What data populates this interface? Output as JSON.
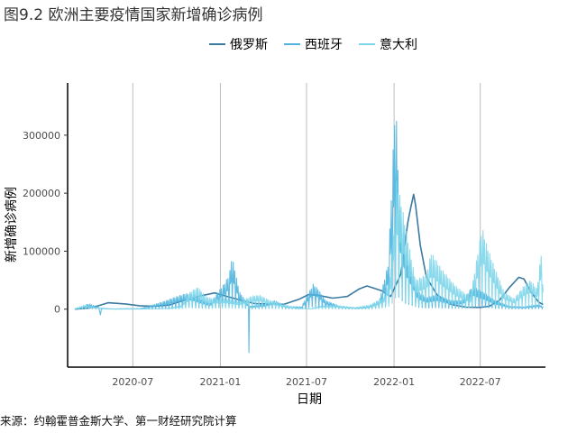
{
  "figure": {
    "title": "图9.2 欧洲主要疫情国家新增确诊病例",
    "source": "来源：约翰霍普金斯大学、第一财经研究院计算"
  },
  "chart_data": {
    "type": "line",
    "title": "",
    "xlabel": "日期",
    "ylabel": "新增确诊病例",
    "x_range": [
      "2020-02-15",
      "2022-11-15"
    ],
    "ylim": [
      -100000,
      390000
    ],
    "x_ticks": [
      "2020-07",
      "2021-01",
      "2021-07",
      "2022-01",
      "2022-07"
    ],
    "y_ticks": [
      0,
      100000,
      200000,
      300000
    ],
    "y_tick_labels": [
      "0",
      "100000",
      "200000",
      "300000"
    ],
    "grid": "vertical only",
    "legend_position": "top",
    "series": [
      {
        "name": "俄罗斯",
        "color": "#3b7aa1",
        "style": "smooth",
        "points": [
          [
            "2020-03-01",
            0
          ],
          [
            "2020-04-01",
            2000
          ],
          [
            "2020-04-20",
            6000
          ],
          [
            "2020-05-10",
            11000
          ],
          [
            "2020-06-15",
            9000
          ],
          [
            "2020-07-15",
            6000
          ],
          [
            "2020-08-15",
            5000
          ],
          [
            "2020-09-15",
            7000
          ],
          [
            "2020-10-15",
            15000
          ],
          [
            "2020-11-15",
            22000
          ],
          [
            "2020-12-20",
            28000
          ],
          [
            "2021-01-15",
            22000
          ],
          [
            "2021-02-15",
            15000
          ],
          [
            "2021-03-15",
            9500
          ],
          [
            "2021-04-15",
            9000
          ],
          [
            "2021-05-15",
            8500
          ],
          [
            "2021-06-15",
            17000
          ],
          [
            "2021-07-05",
            25000
          ],
          [
            "2021-07-25",
            24000
          ],
          [
            "2021-08-25",
            19000
          ],
          [
            "2021-09-25",
            22000
          ],
          [
            "2021-10-20",
            35000
          ],
          [
            "2021-11-05",
            40000
          ],
          [
            "2021-12-05",
            32000
          ],
          [
            "2021-12-25",
            22000
          ],
          [
            "2022-01-15",
            60000
          ],
          [
            "2022-01-30",
            150000
          ],
          [
            "2022-02-05",
            175000
          ],
          [
            "2022-02-11",
            198000
          ],
          [
            "2022-02-15",
            180000
          ],
          [
            "2022-02-25",
            110000
          ],
          [
            "2022-03-10",
            55000
          ],
          [
            "2022-04-01",
            25000
          ],
          [
            "2022-05-01",
            8000
          ],
          [
            "2022-06-01",
            3500
          ],
          [
            "2022-07-01",
            3000
          ],
          [
            "2022-07-20",
            5000
          ],
          [
            "2022-08-10",
            15000
          ],
          [
            "2022-09-01",
            38000
          ],
          [
            "2022-09-20",
            55000
          ],
          [
            "2022-10-01",
            52000
          ],
          [
            "2022-10-15",
            30000
          ],
          [
            "2022-11-01",
            12000
          ],
          [
            "2022-11-10",
            8000
          ]
        ]
      },
      {
        "name": "西班牙",
        "color": "#4fb5df",
        "style": "spiky",
        "points": [
          [
            "2020-03-01",
            0
          ],
          [
            "2020-03-15",
            3000
          ],
          [
            "2020-03-25",
            8000
          ],
          [
            "2020-04-01",
            9000
          ],
          [
            "2020-04-10",
            6000
          ],
          [
            "2020-04-20",
            4000
          ],
          [
            "2020-04-24",
            -10000
          ],
          [
            "2020-04-26",
            2000
          ],
          [
            "2020-05-20",
            500
          ],
          [
            "2020-06-19",
            1000
          ],
          [
            "2020-07-15",
            1000
          ],
          [
            "2020-08-15",
            8000
          ],
          [
            "2020-09-10",
            15000
          ],
          [
            "2020-09-25",
            20000
          ],
          [
            "2020-10-20",
            27000
          ],
          [
            "2020-11-05",
            25000
          ],
          [
            "2020-11-20",
            18000
          ],
          [
            "2020-12-10",
            10000
          ],
          [
            "2021-01-10",
            45000
          ],
          [
            "2021-01-20",
            60000
          ],
          [
            "2021-01-25",
            93000
          ],
          [
            "2021-02-10",
            30000
          ],
          [
            "2021-03-01",
            8000
          ],
          [
            "2021-03-02",
            -75000
          ],
          [
            "2021-03-03",
            5000
          ],
          [
            "2021-04-01",
            8000
          ],
          [
            "2021-04-25",
            15000
          ],
          [
            "2021-05-20",
            5000
          ],
          [
            "2021-06-20",
            4000
          ],
          [
            "2021-07-15",
            43000
          ],
          [
            "2021-07-25",
            35000
          ],
          [
            "2021-08-10",
            15000
          ],
          [
            "2021-09-10",
            5000
          ],
          [
            "2021-10-15",
            2000
          ],
          [
            "2021-11-10",
            5000
          ],
          [
            "2021-12-01",
            15000
          ],
          [
            "2021-12-20",
            80000
          ],
          [
            "2022-01-04",
            372000
          ],
          [
            "2022-01-12",
            180000
          ],
          [
            "2022-01-25",
            100000
          ],
          [
            "2022-02-10",
            60000
          ],
          [
            "2022-02-20",
            30000
          ],
          [
            "2022-03-10",
            20000
          ],
          [
            "2022-04-01",
            25000
          ],
          [
            "2022-04-30",
            15000
          ],
          [
            "2022-05-25",
            15000
          ],
          [
            "2022-06-15",
            40000
          ],
          [
            "2022-07-10",
            28000
          ],
          [
            "2022-08-01",
            15000
          ],
          [
            "2022-09-01",
            5000
          ],
          [
            "2022-10-01",
            4000
          ],
          [
            "2022-11-01",
            8000
          ],
          [
            "2022-11-10",
            5000
          ]
        ]
      },
      {
        "name": "意大利",
        "color": "#7fd6ea",
        "style": "spiky",
        "points": [
          [
            "2020-03-01",
            1000
          ],
          [
            "2020-03-20",
            6500
          ],
          [
            "2020-04-15",
            3000
          ],
          [
            "2020-05-15",
            500
          ],
          [
            "2020-06-15",
            200
          ],
          [
            "2020-07-15",
            300
          ],
          [
            "2020-08-15",
            1000
          ],
          [
            "2020-09-15",
            1800
          ],
          [
            "2020-10-10",
            6000
          ],
          [
            "2020-10-30",
            30000
          ],
          [
            "2020-11-15",
            38000
          ],
          [
            "2020-12-01",
            22000
          ],
          [
            "2020-12-20",
            17000
          ],
          [
            "2021-01-10",
            19000
          ],
          [
            "2021-02-10",
            13000
          ],
          [
            "2021-03-10",
            23000
          ],
          [
            "2021-03-25",
            24000
          ],
          [
            "2021-04-15",
            15000
          ],
          [
            "2021-05-10",
            9000
          ],
          [
            "2021-06-10",
            2000
          ],
          [
            "2021-07-10",
            1000
          ],
          [
            "2021-08-01",
            6000
          ],
          [
            "2021-09-01",
            6500
          ],
          [
            "2021-10-10",
            3000
          ],
          [
            "2021-11-10",
            7000
          ],
          [
            "2021-12-10",
            20000
          ],
          [
            "2021-12-25",
            60000
          ],
          [
            "2022-01-06",
            220000
          ],
          [
            "2022-01-15",
            190000
          ],
          [
            "2022-01-30",
            120000
          ],
          [
            "2022-02-15",
            50000
          ],
          [
            "2022-03-10",
            60000
          ],
          [
            "2022-03-20",
            98000
          ],
          [
            "2022-04-10",
            70000
          ],
          [
            "2022-05-10",
            40000
          ],
          [
            "2022-06-10",
            20000
          ],
          [
            "2022-07-05",
            142000
          ],
          [
            "2022-07-15",
            110000
          ],
          [
            "2022-08-01",
            70000
          ],
          [
            "2022-08-20",
            30000
          ],
          [
            "2022-09-10",
            18000
          ],
          [
            "2022-10-01",
            40000
          ],
          [
            "2022-10-15",
            50000
          ],
          [
            "2022-10-28",
            35000
          ],
          [
            "2022-11-08",
            110000
          ],
          [
            "2022-11-10",
            30000
          ]
        ]
      }
    ]
  }
}
